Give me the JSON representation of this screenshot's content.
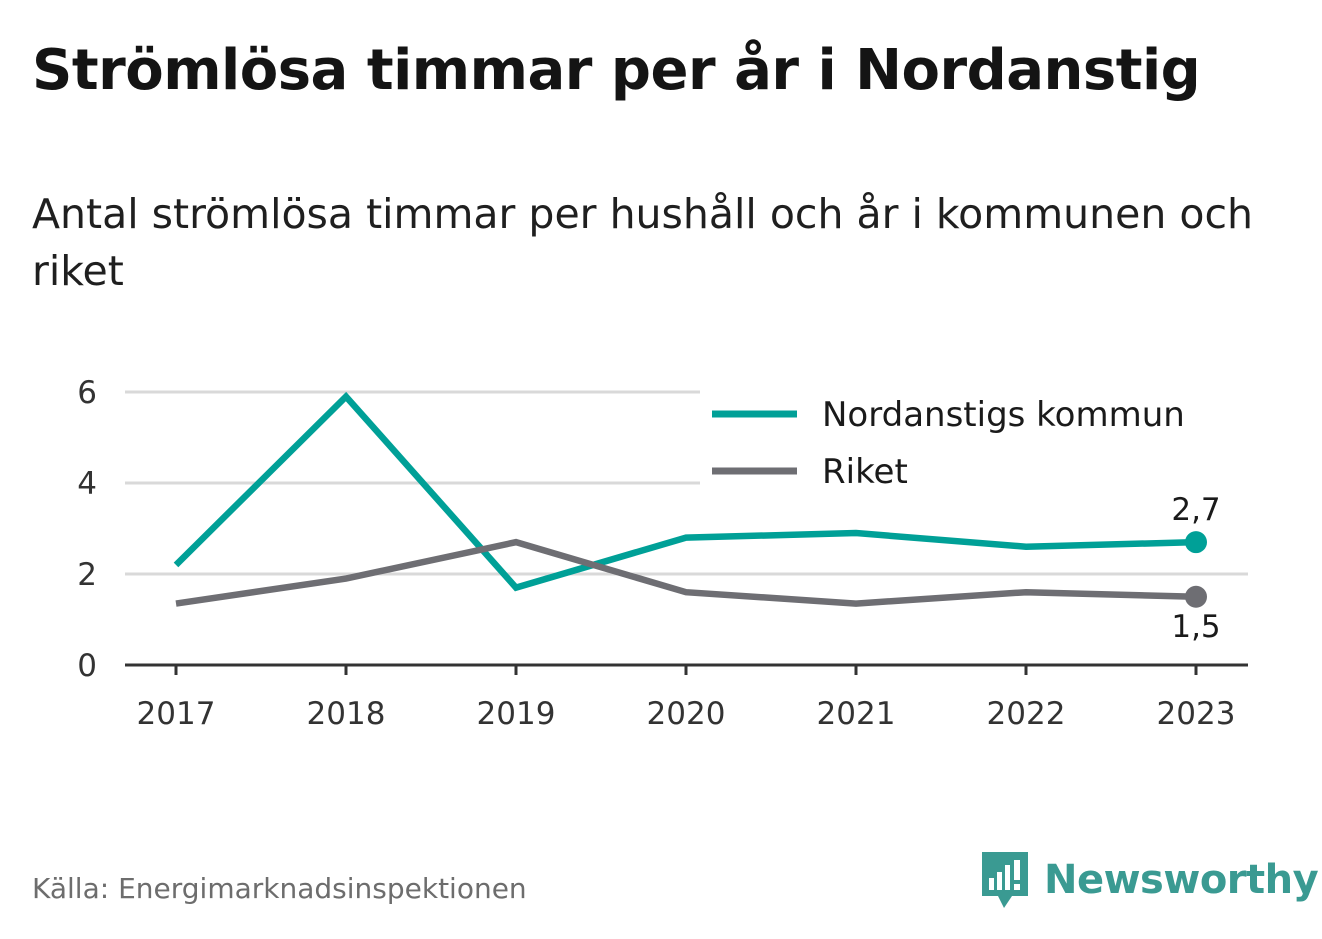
{
  "title": "Strömlösa timmar per år i Nordanstig",
  "subtitle": "Antal strömlösa timmar per hushåll och år i kommunen och riket",
  "source": "Källa: Energimarknadsinspektionen",
  "brand": {
    "name": "Newsworthy",
    "icon": "newsworthy-logo-icon",
    "color": "#3a9a92"
  },
  "chart_data": {
    "type": "line",
    "x": [
      "2017",
      "2018",
      "2019",
      "2020",
      "2021",
      "2022",
      "2023"
    ],
    "ylim": [
      0,
      6
    ],
    "yticks": [
      0,
      2,
      4,
      6
    ],
    "grid": true,
    "legend_position": "top-right",
    "series": [
      {
        "name": "Nordanstigs kommun",
        "color": "#00a097",
        "values": [
          2.2,
          5.9,
          1.7,
          2.8,
          2.9,
          2.6,
          2.7
        ],
        "end_label": "2,7"
      },
      {
        "name": "Riket",
        "color": "#6e6e73",
        "values": [
          1.35,
          1.9,
          2.7,
          1.6,
          1.35,
          1.6,
          1.5
        ],
        "end_label": "1,5"
      }
    ]
  }
}
